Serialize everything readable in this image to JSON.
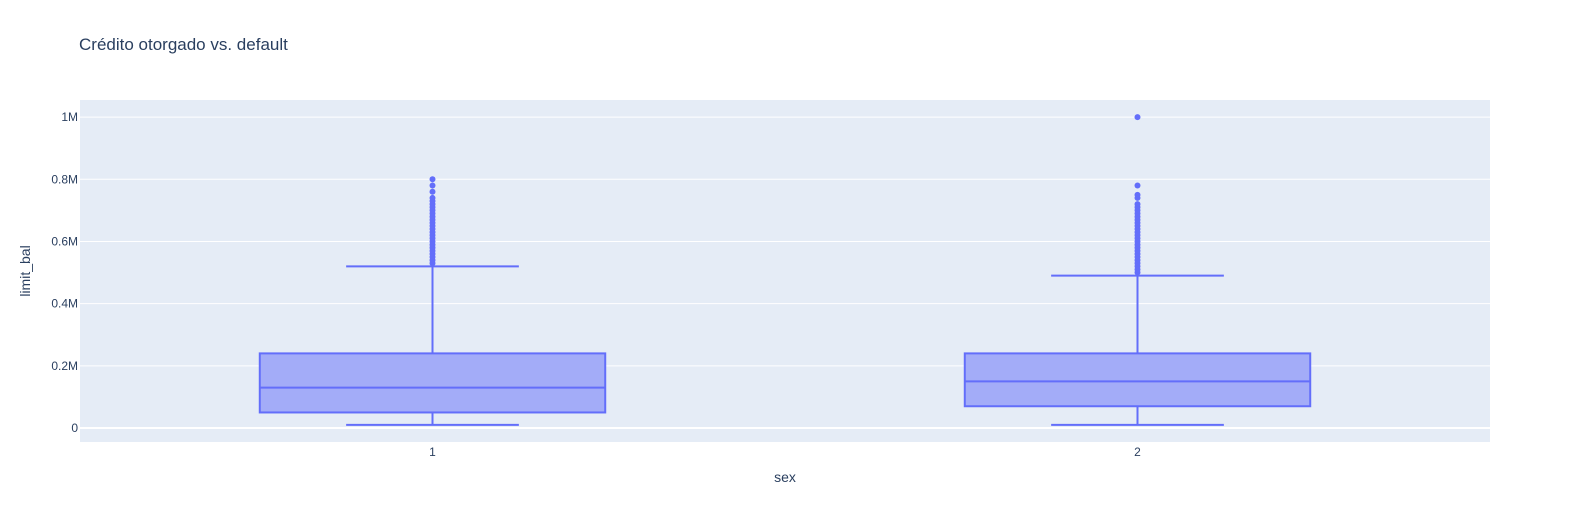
{
  "chart_data": {
    "type": "box",
    "title": "Crédito otorgado vs. default",
    "xlabel": "sex",
    "ylabel": "limit_bal",
    "categories": [
      "1",
      "2"
    ],
    "ylim": [
      -45000,
      1055000
    ],
    "yticks": [
      {
        "value": 0,
        "label": "0"
      },
      {
        "value": 200000,
        "label": "0.2M"
      },
      {
        "value": 400000,
        "label": "0.4M"
      },
      {
        "value": 600000,
        "label": "0.6M"
      },
      {
        "value": 800000,
        "label": "0.8M"
      },
      {
        "value": 1000000,
        "label": "1M"
      }
    ],
    "grid": true,
    "colors": {
      "plot_bg": "#e5ecf6",
      "grid": "#ffffff",
      "box_line": "#636efa",
      "box_fill": "#a3acf8"
    },
    "boxes": [
      {
        "category": "1",
        "min": 10000,
        "q1": 50000,
        "median": 130000,
        "q3": 240000,
        "upper_fence": 520000,
        "outliers": [
          530000,
          540000,
          550000,
          560000,
          570000,
          580000,
          590000,
          600000,
          610000,
          620000,
          630000,
          640000,
          650000,
          660000,
          670000,
          680000,
          690000,
          700000,
          710000,
          720000,
          730000,
          740000,
          760000,
          780000,
          800000
        ]
      },
      {
        "category": "2",
        "min": 10000,
        "q1": 70000,
        "median": 150000,
        "q3": 240000,
        "upper_fence": 490000,
        "outliers": [
          500000,
          510000,
          520000,
          530000,
          540000,
          550000,
          560000,
          570000,
          580000,
          590000,
          600000,
          610000,
          620000,
          630000,
          640000,
          650000,
          660000,
          670000,
          680000,
          690000,
          700000,
          710000,
          720000,
          740000,
          750000,
          780000,
          1000000
        ]
      }
    ]
  }
}
